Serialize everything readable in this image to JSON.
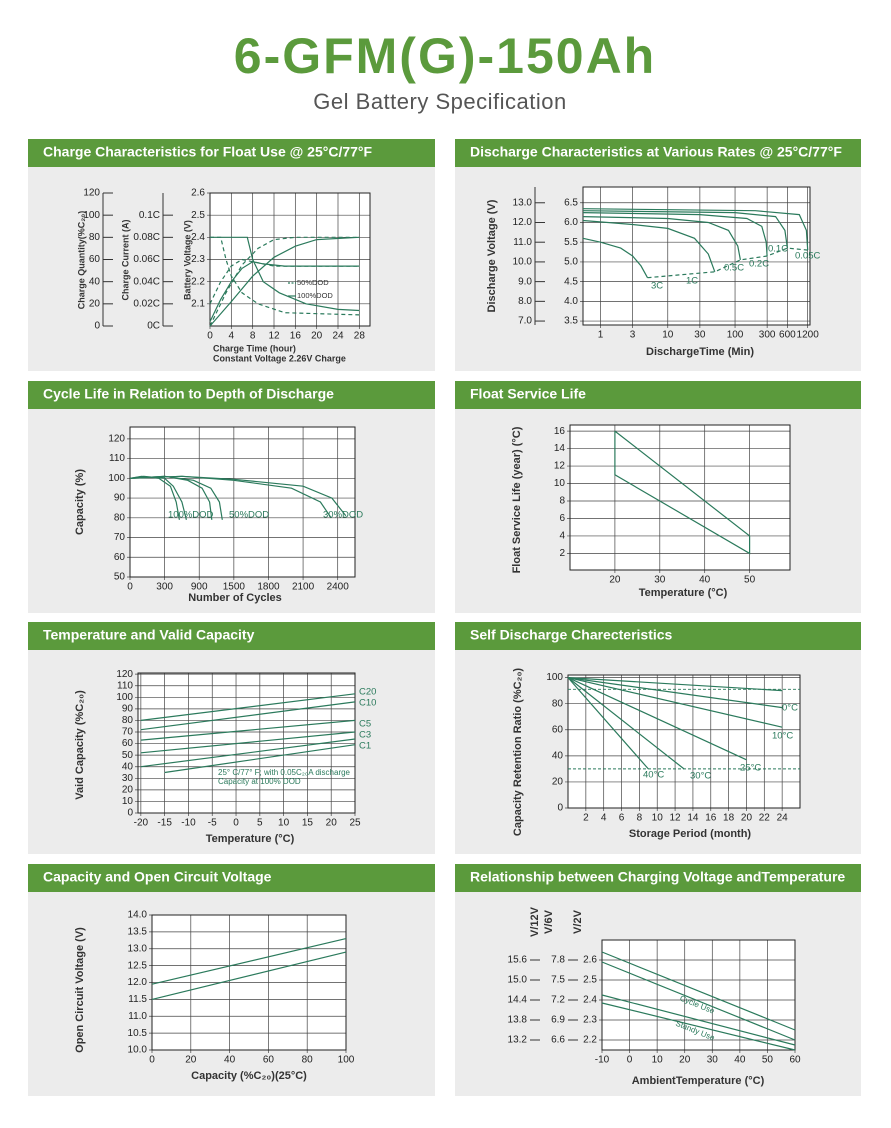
{
  "header": {
    "title": "6-GFM(G)-150Ah",
    "subtitle": "Gel Battery Specification"
  },
  "chart_data": [
    {
      "type": "line",
      "title": "Charge Characteristics for Float Use @ 25°C/77°F",
      "xlabel": "Charge Time (hour)",
      "xlabel2": "Constant Voltage 2.26V Charge",
      "ylabel": "Battery Voltage (V)",
      "y2label": "Charge Current (A)",
      "y3label": "Charge Quantity(%C₂₀)",
      "color": "#2b7a5c",
      "grid": true,
      "xlim": [
        0,
        30
      ],
      "xticks": [
        0,
        4,
        8,
        12,
        16,
        20,
        24,
        28
      ],
      "ylim": [
        2.0,
        2.6
      ],
      "yticks": [
        2.1,
        2.2,
        2.3,
        2.4,
        2.5,
        2.6
      ],
      "y2lim": [
        0,
        0.12
      ],
      "y2ticks": [
        {
          "value": 0,
          "label": "0C"
        },
        {
          "value": 0.02,
          "label": "0.02C"
        },
        {
          "value": 0.04,
          "label": "0.04C"
        },
        {
          "value": 0.06,
          "label": "0.06C"
        },
        {
          "value": 0.08,
          "label": "0.08C"
        },
        {
          "value": 0.1,
          "label": "0.1C"
        }
      ],
      "y3lim": [
        0,
        120
      ],
      "y3ticks": [
        0,
        20,
        40,
        60,
        80,
        100,
        120
      ],
      "legend": [
        {
          "name": "50%DOD",
          "dash": true
        },
        {
          "name": "100%DOD",
          "dash": false
        }
      ],
      "series": [
        {
          "x": [
            0,
            2,
            4,
            6,
            8,
            10,
            14,
            20,
            28
          ],
          "values": [
            2.02,
            2.12,
            2.2,
            2.26,
            2.29,
            2.28,
            2.27,
            2.27,
            2.27
          ],
          "dash": false
        },
        {
          "x": [
            0,
            2,
            4,
            6,
            8,
            12,
            28
          ],
          "values": [
            2.1,
            2.2,
            2.27,
            2.3,
            2.29,
            2.27,
            2.27
          ],
          "dash": true
        },
        {
          "x": [
            0,
            7,
            8,
            10,
            13,
            18,
            24,
            28
          ],
          "values": [
            0.08,
            0.08,
            0.06,
            0.04,
            0.03,
            0.02,
            0.015,
            0.014
          ],
          "axis": "y2",
          "dash": false
        },
        {
          "x": [
            0,
            2,
            3,
            4,
            6,
            9,
            14,
            28
          ],
          "values": [
            0.08,
            0.08,
            0.06,
            0.045,
            0.03,
            0.02,
            0.012,
            0.01
          ],
          "axis": "y2",
          "dash": true
        },
        {
          "x": [
            0,
            4,
            8,
            12,
            16,
            20,
            28
          ],
          "values": [
            0,
            22,
            45,
            62,
            72,
            78,
            80
          ],
          "axis": "y3",
          "dash": false
        },
        {
          "x": [
            0,
            3,
            6,
            9,
            12,
            16,
            28
          ],
          "values": [
            0,
            30,
            55,
            70,
            78,
            80,
            80
          ],
          "axis": "y3",
          "dash": true
        }
      ]
    },
    {
      "type": "line",
      "title": "Discharge Characteristics at Various Rates @ 25°C/77°F",
      "xlabel": "DischargeTime (Min)",
      "ylabel": "Discharge Voltage (V)",
      "color": "#2b7a5c",
      "grid": true,
      "xscale": "log",
      "xlim": [
        0.55,
        1300
      ],
      "xticks": [
        1,
        3,
        10,
        30,
        100,
        300,
        600,
        1200
      ],
      "ylim": [
        3.4,
        6.9
      ],
      "yticks": [
        3.5,
        {
          "value": 4,
          "label": "4.0"
        },
        4.5,
        {
          "value": 5,
          "label": "5.0"
        },
        5.5,
        {
          "value": 6,
          "label": "6.0"
        },
        6.5
      ],
      "y2lim": [
        6.8,
        13.8
      ],
      "y2ticks": [
        {
          "value": 7,
          "label": "7.0"
        },
        {
          "value": 8,
          "label": "8.0"
        },
        {
          "value": 9,
          "label": "9.0"
        },
        {
          "value": 10,
          "label": "10.0"
        },
        {
          "value": 11,
          "label": "11.0"
        },
        {
          "value": 12,
          "label": "12.0"
        },
        {
          "value": 13,
          "label": "13.0"
        }
      ],
      "series": [
        {
          "name": "3C",
          "x": [
            0.55,
            1,
            2,
            3,
            4,
            5
          ],
          "values": [
            5.6,
            5.5,
            5.35,
            5.15,
            4.9,
            4.6
          ]
        },
        {
          "name": "1C",
          "x": [
            0.55,
            3,
            10,
            25,
            40,
            50
          ],
          "values": [
            6.05,
            5.95,
            5.85,
            5.6,
            5.2,
            4.75
          ]
        },
        {
          "name": "0.5C",
          "x": [
            0.55,
            10,
            40,
            80,
            110,
            120
          ],
          "values": [
            6.15,
            6.1,
            6.0,
            5.8,
            5.4,
            5.05
          ]
        },
        {
          "name": "0.2C",
          "x": [
            0.55,
            30,
            150,
            250,
            290,
            300
          ],
          "values": [
            6.25,
            6.2,
            6.1,
            5.9,
            5.5,
            5.15
          ]
        },
        {
          "name": "0.1C",
          "x": [
            0.55,
            100,
            400,
            550,
            600
          ],
          "values": [
            6.3,
            6.25,
            6.15,
            5.8,
            5.35
          ]
        },
        {
          "name": "0.05C",
          "x": [
            0.55,
            200,
            900,
            1150,
            1200
          ],
          "values": [
            6.35,
            6.3,
            6.2,
            5.8,
            5.3
          ]
        },
        {
          "x": [
            5,
            50,
            120,
            300,
            600,
            1200
          ],
          "values": [
            4.6,
            4.75,
            5.05,
            5.15,
            5.35,
            5.3
          ],
          "dash": true
        }
      ]
    },
    {
      "type": "line",
      "title": "Cycle  Life in Relation to Depth of Discharge",
      "xlabel": "Number of Cycles",
      "ylabel": "Capacity (%)",
      "color": "#2b7a5c",
      "grid": true,
      "xscale": "piecewise",
      "xlim": [
        0,
        2550
      ],
      "xticks": [
        0,
        300,
        900,
        1500,
        1800,
        2100,
        2400
      ],
      "ylim": [
        50,
        126
      ],
      "yticks": [
        50,
        60,
        70,
        80,
        90,
        100,
        110,
        120
      ],
      "series": [
        {
          "name": "100%DOD",
          "x": [
            0,
            100,
            250,
            400,
            500,
            557
          ],
          "values": [
            100,
            101,
            100,
            96,
            88,
            79
          ]
        },
        {
          "x": [
            0,
            120,
            300,
            450,
            600,
            677
          ],
          "values": [
            100,
            101,
            100,
            96,
            88,
            79
          ]
        },
        {
          "name": "50%DOD",
          "x": [
            0,
            300,
            700,
            950,
            1080,
            1118
          ],
          "values": [
            100,
            101,
            99,
            95,
            88,
            79
          ]
        },
        {
          "x": [
            0,
            300,
            800,
            1100,
            1250,
            1300
          ],
          "values": [
            100,
            101,
            99,
            95,
            88,
            79
          ]
        },
        {
          "name": "30%DOD",
          "x": [
            0,
            600,
            1500,
            2000,
            2250,
            2343
          ],
          "values": [
            100,
            101,
            99,
            95,
            88,
            80
          ]
        },
        {
          "x": [
            0,
            600,
            1500,
            2100,
            2350,
            2470
          ],
          "values": [
            100,
            101,
            99.5,
            96,
            90,
            81
          ]
        }
      ]
    },
    {
      "type": "line",
      "title": "Float Service Life",
      "xlabel": "Temperature (°C)",
      "ylabel": "Float Service Life (year) (°C)",
      "color": "#2b7a5c",
      "grid": true,
      "xlim": [
        10,
        59
      ],
      "xticks": [
        20,
        30,
        40,
        50
      ],
      "yscale": "piecewise",
      "ylim": [
        0.1,
        16.7
      ],
      "yticks": [
        2,
        4,
        6,
        8,
        10,
        12,
        14,
        16
      ],
      "series": [
        {
          "x": [
            20,
            50,
            50,
            20,
            20
          ],
          "values": [
            16,
            4,
            2,
            11,
            16
          ]
        }
      ]
    },
    {
      "type": "line",
      "title": "Temperature and Valid Capacity",
      "xlabel": "Temperature (°C)",
      "ylabel": "Vaid Capacity (%C₂₀)",
      "color": "#2b7a5c",
      "grid": true,
      "xlim": [
        -20.6,
        25
      ],
      "xticks": [
        -20,
        -15,
        -10,
        -5,
        0,
        5,
        10,
        15,
        20,
        25
      ],
      "ylim": [
        0,
        121
      ],
      "yticks": [
        0,
        10,
        20,
        30,
        40,
        50,
        60,
        70,
        80,
        90,
        100,
        110,
        120
      ],
      "annotations": [
        "25° C/77° F;  with 0.05C₂₀A discharge",
        "Capacity at 100% DOD"
      ],
      "series": [
        {
          "name": "C20",
          "x": [
            -20,
            25
          ],
          "values": [
            80,
            103
          ]
        },
        {
          "name": "C10",
          "x": [
            -20,
            25
          ],
          "values": [
            72,
            96
          ]
        },
        {
          "name": "C5",
          "x": [
            -20,
            25
          ],
          "values": [
            63,
            80
          ]
        },
        {
          "name": "C3",
          "x": [
            -20,
            25
          ],
          "values": [
            52,
            70
          ]
        },
        {
          "name": "C1",
          "x": [
            -15,
            25
          ],
          "values": [
            35,
            59
          ]
        },
        {
          "x": [
            -20,
            25
          ],
          "values": [
            40,
            64
          ]
        }
      ]
    },
    {
      "type": "line",
      "title": "Self Discharge Charecteristics",
      "xlabel": "Storage Period (month)",
      "ylabel": "Capacity Retention Ratio (%C₂₀)",
      "color": "#2b7a5c",
      "grid": true,
      "xlim": [
        0,
        26
      ],
      "xticks": [
        2,
        4,
        6,
        8,
        10,
        12,
        14,
        16,
        18,
        20,
        22,
        24
      ],
      "ylim": [
        0,
        102
      ],
      "yticks": [
        0,
        20,
        40,
        60,
        80,
        100
      ],
      "hlines": [
        91,
        30
      ],
      "series": [
        {
          "name": "0°C",
          "x": [
            0,
            24
          ],
          "values": [
            100,
            77
          ]
        },
        {
          "name": "10°C",
          "x": [
            0,
            24
          ],
          "values": [
            100,
            62
          ]
        },
        {
          "name": "25°C",
          "x": [
            0,
            20
          ],
          "values": [
            100,
            37
          ]
        },
        {
          "name": "30°C",
          "x": [
            0,
            13
          ],
          "values": [
            100,
            30
          ]
        },
        {
          "name": "40°C",
          "x": [
            0,
            9
          ],
          "values": [
            100,
            30
          ]
        },
        {
          "x": [
            0,
            24
          ],
          "values": [
            100,
            90
          ]
        }
      ]
    },
    {
      "type": "line",
      "title": "Capacity and Open Circuit Voltage",
      "xlabel": "Capacity (%C₂₀)(25°C)",
      "ylabel": "Open Circuit Voltage (V)",
      "color": "#2b7a5c",
      "grid": true,
      "xlim": [
        0,
        100
      ],
      "xticks": [
        0,
        20,
        40,
        60,
        80,
        100
      ],
      "ylim": [
        10,
        14
      ],
      "yticks": [
        {
          "value": 10,
          "label": "10.0"
        },
        10.5,
        {
          "value": 11,
          "label": "11.0"
        },
        11.5,
        {
          "value": 12,
          "label": "12.0"
        },
        12.5,
        {
          "value": 13,
          "label": "13.0"
        },
        13.5,
        {
          "value": 14,
          "label": "14.0"
        }
      ],
      "series": [
        {
          "x": [
            0,
            100
          ],
          "values": [
            11.95,
            13.3
          ]
        },
        {
          "x": [
            0,
            100
          ],
          "values": [
            11.5,
            12.9
          ]
        }
      ]
    },
    {
      "type": "line",
      "title": "Relationship between Charging Voltage andTemperature",
      "xlabel": "AmbientTemperature (°C)",
      "ylabel": "V/2V",
      "y2label": "V/6V",
      "y3label": "V/12V",
      "color": "#2b7a5c",
      "grid": true,
      "xlim": [
        -10,
        60
      ],
      "xticks": [
        -10,
        0,
        10,
        20,
        30,
        40,
        50,
        60
      ],
      "ylim": [
        2.15,
        2.7
      ],
      "yticks": [
        2.2,
        2.3,
        2.4,
        2.5,
        2.6
      ],
      "y2lim": [
        6.45,
        8.1
      ],
      "y2ticks": [
        6.6,
        6.9,
        7.2,
        7.5,
        7.8
      ],
      "y3lim": [
        12.9,
        16.2
      ],
      "y3ticks": [
        13.2,
        13.8,
        14.4,
        {
          "value": 15,
          "label": "15.0"
        },
        15.6
      ],
      "annotations": [
        "Cycle Use",
        "Standy Use"
      ],
      "series": [
        {
          "x": [
            -10,
            60
          ],
          "values": [
            2.64,
            2.25
          ]
        },
        {
          "x": [
            -10,
            60
          ],
          "values": [
            2.59,
            2.2
          ]
        },
        {
          "x": [
            -10,
            60
          ],
          "values": [
            2.425,
            2.175
          ]
        },
        {
          "x": [
            -10,
            60
          ],
          "values": [
            2.385,
            2.15
          ]
        }
      ]
    }
  ]
}
